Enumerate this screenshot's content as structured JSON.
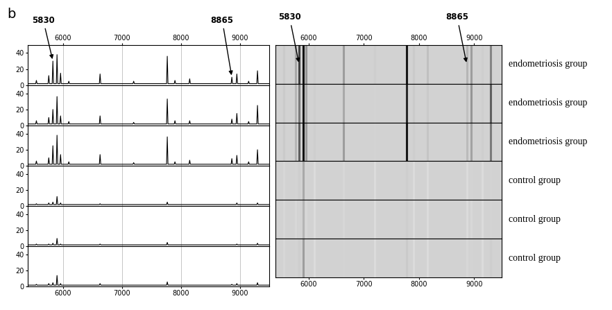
{
  "panel_label": "b",
  "chart_data": [
    {
      "type": "line",
      "color": "#000000",
      "x": [
        5400,
        5538,
        5550,
        5562,
        5748,
        5760,
        5772,
        5818,
        5830,
        5842,
        5888,
        5900,
        5912,
        5948,
        5960,
        5972,
        6088,
        6100,
        6112,
        6618,
        6630,
        6642,
        7188,
        7200,
        7212,
        7758,
        7770,
        7782,
        7888,
        7900,
        7912,
        8138,
        8150,
        8162,
        8853,
        8865,
        8877,
        8938,
        8950,
        8962,
        9138,
        9150,
        9162,
        9288,
        9300,
        9312,
        9500
      ],
      "values": [
        2,
        2,
        6,
        2,
        2,
        12,
        2,
        2,
        30,
        2,
        2,
        38,
        2,
        2,
        15,
        2,
        2,
        5,
        2,
        2,
        14,
        2,
        2,
        5,
        2,
        2,
        36,
        2,
        2,
        6,
        2,
        2,
        8,
        2,
        2,
        10,
        2,
        2,
        14,
        2,
        2,
        5,
        2,
        2,
        18,
        2,
        2
      ],
      "xlim": [
        5400,
        9500
      ],
      "ylim": [
        0,
        50
      ],
      "xticks": [
        6000,
        7000,
        8000,
        9000
      ],
      "yticks": [
        0,
        20,
        40
      ],
      "grid": true,
      "annotations": [
        {
          "text": "5830",
          "x": 5830
        },
        {
          "text": "8865",
          "x": 8865
        }
      ]
    },
    {
      "type": "line",
      "color": "#000000",
      "x": [
        5400,
        5538,
        5550,
        5562,
        5748,
        5760,
        5772,
        5818,
        5830,
        5842,
        5888,
        5900,
        5912,
        5948,
        5960,
        5972,
        6088,
        6100,
        6112,
        6618,
        6630,
        6642,
        7188,
        7200,
        7212,
        7758,
        7770,
        7782,
        7888,
        7900,
        7912,
        8138,
        8150,
        8162,
        8853,
        8865,
        8877,
        8938,
        8950,
        8962,
        9138,
        9150,
        9162,
        9288,
        9300,
        9312,
        9500
      ],
      "values": [
        2,
        2,
        6,
        2,
        2,
        10,
        2,
        2,
        20,
        2,
        2,
        36,
        2,
        2,
        12,
        2,
        2,
        5,
        2,
        2,
        12,
        2,
        2,
        4,
        2,
        2,
        33,
        2,
        2,
        6,
        2,
        2,
        6,
        2,
        2,
        8,
        2,
        2,
        15,
        2,
        2,
        5,
        2,
        2,
        25,
        2,
        2
      ],
      "xlim": [
        5400,
        9500
      ],
      "ylim": [
        0,
        50
      ],
      "xticks": [
        6000,
        7000,
        8000,
        9000
      ],
      "yticks": [
        0,
        20,
        40
      ],
      "grid": true,
      "tick_labels": "y"
    },
    {
      "type": "line",
      "color": "#000000",
      "x": [
        5400,
        5538,
        5550,
        5562,
        5748,
        5760,
        5772,
        5818,
        5830,
        5842,
        5888,
        5900,
        5912,
        5948,
        5960,
        5972,
        6088,
        6100,
        6112,
        6618,
        6630,
        6642,
        7188,
        7200,
        7212,
        7758,
        7770,
        7782,
        7888,
        7900,
        7912,
        8138,
        8150,
        8162,
        8853,
        8865,
        8877,
        8938,
        8950,
        8962,
        9138,
        9150,
        9162,
        9288,
        9300,
        9312,
        9500
      ],
      "values": [
        2,
        2,
        6,
        2,
        2,
        10,
        2,
        2,
        25,
        2,
        2,
        38,
        2,
        2,
        14,
        2,
        2,
        5,
        2,
        2,
        14,
        2,
        2,
        4,
        2,
        2,
        36,
        2,
        2,
        5,
        2,
        2,
        7,
        2,
        2,
        9,
        2,
        2,
        13,
        2,
        2,
        5,
        2,
        2,
        20,
        2,
        2
      ],
      "xlim": [
        5400,
        9500
      ],
      "ylim": [
        0,
        50
      ],
      "xticks": [
        6000,
        7000,
        8000,
        9000
      ],
      "yticks": [
        0,
        20,
        40
      ],
      "grid": true,
      "tick_labels": "y"
    },
    {
      "type": "line",
      "color": "#000000",
      "x": [
        5400,
        5538,
        5550,
        5562,
        5748,
        5760,
        5772,
        5818,
        5830,
        5842,
        5888,
        5900,
        5912,
        5948,
        5960,
        5972,
        6088,
        6100,
        6112,
        6618,
        6630,
        6642,
        7188,
        7200,
        7212,
        7758,
        7770,
        7782,
        7888,
        7900,
        7912,
        8138,
        8150,
        8162,
        8853,
        8865,
        8877,
        8938,
        8950,
        8962,
        9138,
        9150,
        9162,
        9288,
        9300,
        9312,
        9500
      ],
      "values": [
        2,
        2,
        3,
        2,
        2,
        4,
        2,
        2,
        5,
        2,
        2,
        12,
        2,
        2,
        4,
        2,
        2,
        2,
        2,
        2,
        3,
        2,
        2,
        2,
        2,
        2,
        5,
        2,
        2,
        2,
        2,
        2,
        2,
        2,
        2,
        2,
        2,
        2,
        4,
        2,
        2,
        2,
        2,
        2,
        4,
        2,
        2
      ],
      "xlim": [
        5400,
        9500
      ],
      "ylim": [
        0,
        50
      ],
      "xticks": [
        6000,
        7000,
        8000,
        9000
      ],
      "yticks": [
        0,
        20,
        40
      ],
      "grid": true,
      "tick_labels": "y"
    },
    {
      "type": "line",
      "color": "#000000",
      "x": [
        5400,
        5538,
        5550,
        5562,
        5748,
        5760,
        5772,
        5818,
        5830,
        5842,
        5888,
        5900,
        5912,
        5948,
        5960,
        5972,
        6088,
        6100,
        6112,
        6618,
        6630,
        6642,
        7188,
        7200,
        7212,
        7758,
        7770,
        7782,
        7888,
        7900,
        7912,
        8138,
        8150,
        8162,
        8853,
        8865,
        8877,
        8938,
        8950,
        8962,
        9138,
        9150,
        9162,
        9288,
        9300,
        9312,
        9500
      ],
      "values": [
        2,
        2,
        3,
        2,
        2,
        3,
        2,
        2,
        4,
        2,
        2,
        10,
        2,
        2,
        3,
        2,
        2,
        2,
        2,
        2,
        3,
        2,
        2,
        2,
        2,
        2,
        5,
        2,
        2,
        2,
        2,
        2,
        2,
        2,
        2,
        2,
        2,
        2,
        3,
        2,
        2,
        2,
        2,
        2,
        4,
        2,
        2
      ],
      "xlim": [
        5400,
        9500
      ],
      "ylim": [
        0,
        50
      ],
      "xticks": [
        6000,
        7000,
        8000,
        9000
      ],
      "yticks": [
        0,
        20,
        40
      ],
      "grid": true,
      "tick_labels": "y"
    },
    {
      "type": "line",
      "color": "#000000",
      "x": [
        5400,
        5538,
        5550,
        5562,
        5748,
        5760,
        5772,
        5818,
        5830,
        5842,
        5888,
        5900,
        5912,
        5948,
        5960,
        5972,
        6088,
        6100,
        6112,
        6618,
        6630,
        6642,
        7188,
        7200,
        7212,
        7758,
        7770,
        7782,
        7888,
        7900,
        7912,
        8138,
        8150,
        8162,
        8853,
        8865,
        8877,
        8938,
        8950,
        8962,
        9138,
        9150,
        9162,
        9288,
        9300,
        9312,
        9500
      ],
      "values": [
        2,
        2,
        3,
        2,
        2,
        4,
        2,
        2,
        5,
        2,
        2,
        14,
        2,
        2,
        4,
        2,
        2,
        2,
        2,
        2,
        4,
        2,
        2,
        2,
        2,
        2,
        6,
        2,
        2,
        2,
        2,
        2,
        2,
        2,
        2,
        3,
        2,
        2,
        4,
        2,
        2,
        2,
        2,
        2,
        5,
        2,
        2
      ],
      "xlim": [
        5400,
        9500
      ],
      "ylim": [
        0,
        50
      ],
      "xticks": [
        6000,
        7000,
        8000,
        9000
      ],
      "yticks": [
        0,
        20,
        40
      ],
      "grid": true
    },
    {
      "type": "gel",
      "label": "endometriosis group",
      "x": [
        5550,
        5760,
        5830,
        5900,
        5960,
        6100,
        6630,
        7200,
        7770,
        7900,
        8150,
        8865,
        8950,
        9150,
        9300
      ],
      "values": [
        6,
        12,
        30,
        38,
        15,
        5,
        14,
        5,
        36,
        6,
        8,
        10,
        14,
        5,
        18
      ],
      "intensity_range": [
        0,
        40
      ],
      "xlim": [
        5400,
        9500
      ],
      "xticks": [
        6000,
        7000,
        8000,
        9000
      ],
      "tick_labels": "x",
      "annotations": [
        {
          "text": "5830",
          "x": 5830
        },
        {
          "text": "8865",
          "x": 8865
        }
      ]
    },
    {
      "type": "gel",
      "label": "endometriosis group",
      "x": [
        5550,
        5760,
        5830,
        5900,
        5960,
        6100,
        6630,
        7200,
        7770,
        7900,
        8150,
        8865,
        8950,
        9150,
        9300
      ],
      "values": [
        6,
        10,
        20,
        36,
        12,
        5,
        12,
        4,
        33,
        6,
        6,
        8,
        15,
        5,
        25
      ],
      "intensity_range": [
        0,
        40
      ],
      "xlim": [
        5400,
        9500
      ],
      "tick_labels": false
    },
    {
      "type": "gel",
      "label": "endometriosis group",
      "x": [
        5550,
        5760,
        5830,
        5900,
        5960,
        6100,
        6630,
        7200,
        7770,
        7900,
        8150,
        8865,
        8950,
        9150,
        9300
      ],
      "values": [
        6,
        10,
        25,
        38,
        14,
        5,
        14,
        4,
        36,
        5,
        7,
        9,
        13,
        5,
        20
      ],
      "intensity_range": [
        0,
        40
      ],
      "xlim": [
        5400,
        9500
      ],
      "tick_labels": false
    },
    {
      "type": "gel",
      "label": "control group",
      "x": [
        5550,
        5760,
        5830,
        5900,
        5960,
        6100,
        6630,
        7200,
        7770,
        7900,
        8150,
        8865,
        8950,
        9150,
        9300
      ],
      "values": [
        3,
        4,
        5,
        12,
        4,
        2,
        3,
        2,
        5,
        2,
        2,
        2,
        4,
        2,
        4
      ],
      "intensity_range": [
        0,
        40
      ],
      "xlim": [
        5400,
        9500
      ],
      "tick_labels": false
    },
    {
      "type": "gel",
      "label": "control group",
      "x": [
        5550,
        5760,
        5830,
        5900,
        5960,
        6100,
        6630,
        7200,
        7770,
        7900,
        8150,
        8865,
        8950,
        9150,
        9300
      ],
      "values": [
        3,
        3,
        4,
        10,
        3,
        2,
        3,
        2,
        5,
        2,
        2,
        2,
        3,
        2,
        4
      ],
      "intensity_range": [
        0,
        40
      ],
      "xlim": [
        5400,
        9500
      ],
      "tick_labels": false
    },
    {
      "type": "gel",
      "label": "control group",
      "x": [
        5550,
        5760,
        5830,
        5900,
        5960,
        6100,
        6630,
        7200,
        7770,
        7900,
        8150,
        8865,
        8950,
        9150,
        9300
      ],
      "values": [
        3,
        4,
        5,
        14,
        4,
        2,
        4,
        2,
        6,
        2,
        2,
        3,
        4,
        2,
        5
      ],
      "intensity_range": [
        0,
        40
      ],
      "xlim": [
        5400,
        9500
      ],
      "xticks": [
        6000,
        7000,
        8000,
        9000
      ],
      "tick_labels": "x"
    }
  ]
}
